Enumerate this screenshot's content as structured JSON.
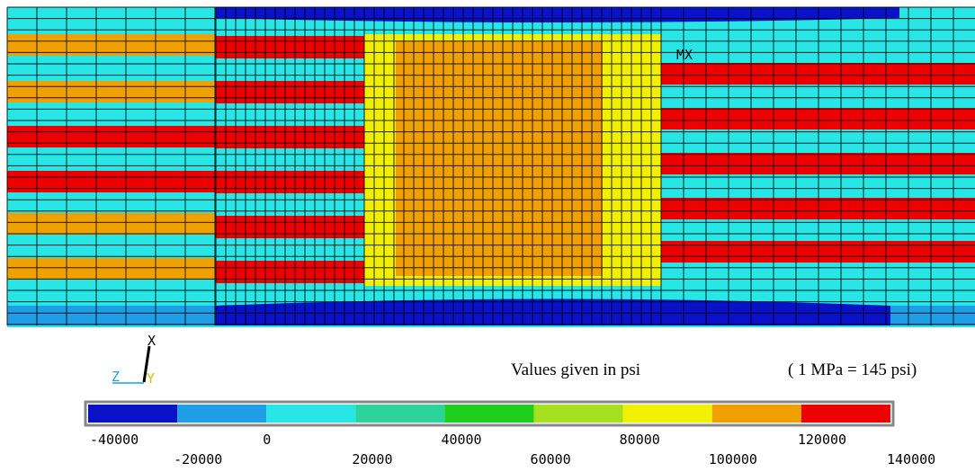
{
  "model": {
    "max_marker": "MX"
  },
  "triad": {
    "x": "X",
    "y": "Y",
    "z": "Z"
  },
  "notes": {
    "units": "Values given in psi",
    "conversion": "( 1 MPa = 145 psi)"
  },
  "legend": {
    "colors": [
      "#0a12c8",
      "#1e9ee6",
      "#28e6e6",
      "#2ad49a",
      "#1ecf1e",
      "#a6e01e",
      "#f0f000",
      "#f0a000",
      "#ef0000"
    ],
    "ticks": [
      -40000,
      -20000,
      0,
      20000,
      40000,
      60000,
      80000,
      100000,
      120000,
      140000
    ]
  }
}
